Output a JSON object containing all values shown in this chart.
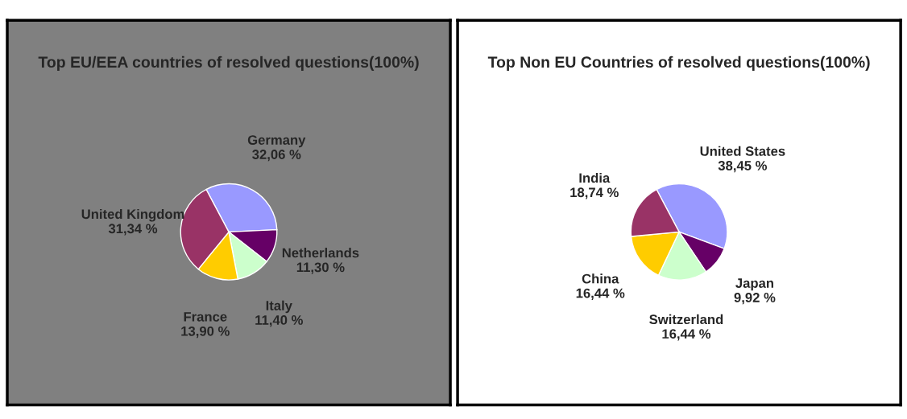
{
  "chart_data": [
    {
      "type": "pie",
      "title": "Top EU/EEA countries of resolved questions(100%)",
      "categories": [
        "Germany",
        "Netherlands",
        "Italy",
        "France",
        "United Kingdom"
      ],
      "values": [
        32.06,
        11.3,
        11.4,
        13.9,
        31.34
      ],
      "value_labels": [
        "32,06 %",
        "11,30 %",
        "11,40 %",
        "13,90 %",
        "31,34 %"
      ],
      "colors": [
        "#9999ff",
        "#660066",
        "#ccffcc",
        "#ffcc00",
        "#993366"
      ]
    },
    {
      "type": "pie",
      "title": "Top Non EU Countries of resolved questions(100%)",
      "categories": [
        "United States",
        "Japan",
        "Switzerland",
        "China",
        "India"
      ],
      "values": [
        38.45,
        9.92,
        16.44,
        16.44,
        18.74
      ],
      "value_labels": [
        "38,45 %",
        "9,92 %",
        "16,44 %",
        "16,44 %",
        "18,74 %"
      ],
      "colors": [
        "#9999ff",
        "#660066",
        "#ccffcc",
        "#ffcc00",
        "#993366"
      ]
    }
  ]
}
